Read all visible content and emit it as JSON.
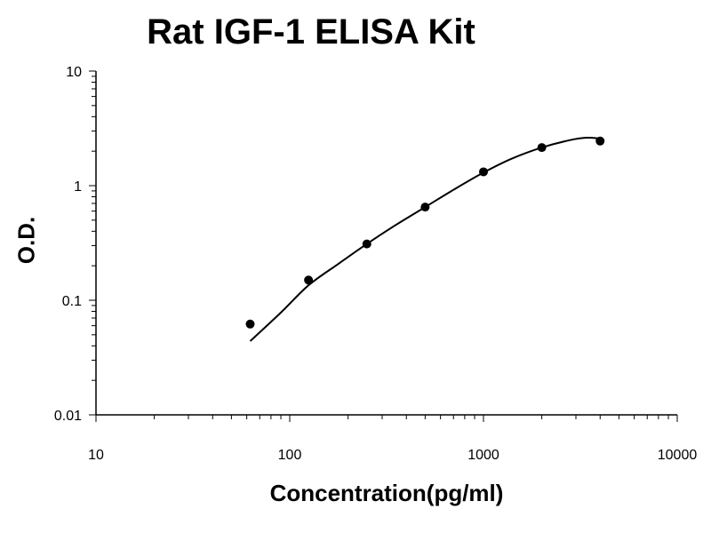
{
  "chart_data": {
    "type": "scatter",
    "title": "Rat IGF-1 ELISA Kit",
    "xlabel": "Concentration(pg/ml)",
    "ylabel": "O.D.",
    "x_scale": "log",
    "y_scale": "log",
    "xlim": [
      10,
      10000
    ],
    "ylim": [
      0.01,
      10
    ],
    "x_ticks": [
      "10",
      "100",
      "1000",
      "10000"
    ],
    "y_ticks": [
      "0.01",
      "0.1",
      "1",
      "10"
    ],
    "grid": false,
    "series": [
      {
        "points": [
          {
            "x": 62.5,
            "y": 0.062
          },
          {
            "x": 125,
            "y": 0.15
          },
          {
            "x": 250,
            "y": 0.31
          },
          {
            "x": 500,
            "y": 0.65
          },
          {
            "x": 1000,
            "y": 1.32
          },
          {
            "x": 2000,
            "y": 2.15
          },
          {
            "x": 4000,
            "y": 2.45
          }
        ],
        "fit_curve": [
          {
            "x": 62.5,
            "y": 0.044
          },
          {
            "x": 90,
            "y": 0.078
          },
          {
            "x": 125,
            "y": 0.135
          },
          {
            "x": 180,
            "y": 0.21
          },
          {
            "x": 250,
            "y": 0.31
          },
          {
            "x": 350,
            "y": 0.45
          },
          {
            "x": 500,
            "y": 0.65
          },
          {
            "x": 700,
            "y": 0.92
          },
          {
            "x": 1000,
            "y": 1.3
          },
          {
            "x": 1400,
            "y": 1.72
          },
          {
            "x": 2000,
            "y": 2.15
          },
          {
            "x": 2800,
            "y": 2.5
          },
          {
            "x": 3400,
            "y": 2.62
          },
          {
            "x": 4000,
            "y": 2.58
          }
        ],
        "color": "#000000"
      }
    ]
  }
}
